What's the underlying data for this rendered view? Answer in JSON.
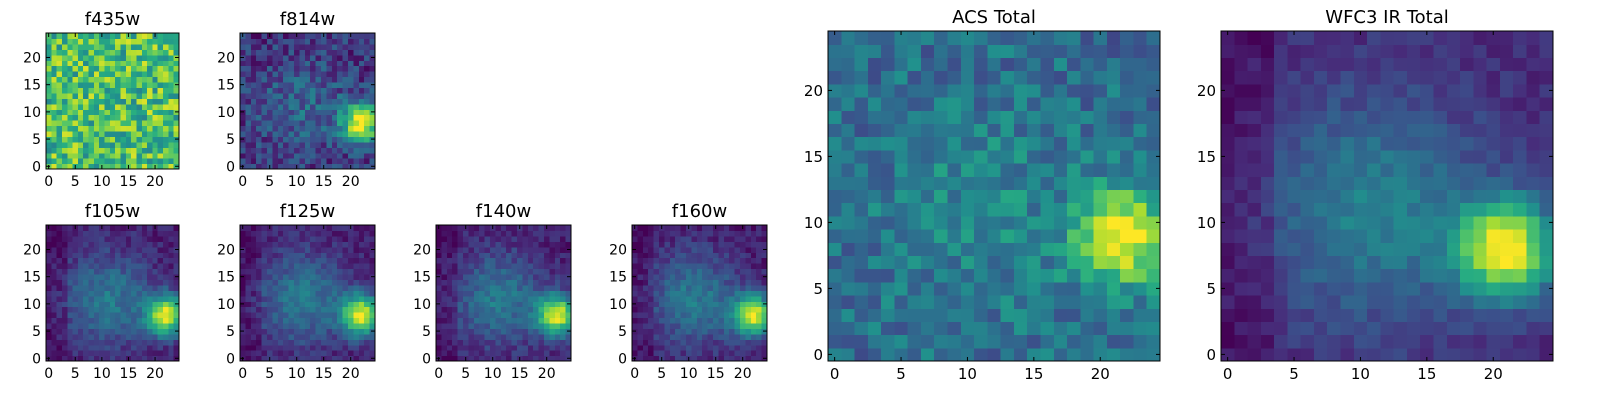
{
  "figure": {
    "background": "#ffffff",
    "colormap": "viridis"
  },
  "chart_data": [
    {
      "type": "heatmap",
      "title": "f435w",
      "xlabel": "",
      "ylabel": "",
      "xlim": [
        0,
        25
      ],
      "ylim": [
        0,
        25
      ],
      "grid": false,
      "x_ticks": [
        "0",
        "5",
        "10",
        "15",
        "20"
      ],
      "y_ticks": [
        "0",
        "5",
        "10",
        "15",
        "20"
      ],
      "description": "noisy uniform image, no source"
    },
    {
      "type": "heatmap",
      "title": "f814w",
      "xlabel": "",
      "ylabel": "",
      "xlim": [
        0,
        25
      ],
      "ylim": [
        0,
        25
      ],
      "grid": false,
      "x_ticks": [
        "0",
        "5",
        "10",
        "15",
        "20"
      ],
      "y_ticks": [
        "0",
        "5",
        "10",
        "15",
        "20"
      ],
      "peak": {
        "x": 22,
        "y": 8
      }
    },
    {
      "type": "heatmap",
      "title": "f105w",
      "xlabel": "",
      "ylabel": "",
      "xlim": [
        0,
        25
      ],
      "ylim": [
        0,
        25
      ],
      "grid": false,
      "x_ticks": [
        "0",
        "5",
        "10",
        "15",
        "20"
      ],
      "y_ticks": [
        "0",
        "5",
        "10",
        "15",
        "20"
      ],
      "peak": {
        "x": 22,
        "y": 8
      }
    },
    {
      "type": "heatmap",
      "title": "f125w",
      "xlabel": "",
      "ylabel": "",
      "xlim": [
        0,
        25
      ],
      "ylim": [
        0,
        25
      ],
      "grid": false,
      "x_ticks": [
        "0",
        "5",
        "10",
        "15",
        "20"
      ],
      "y_ticks": [
        "0",
        "5",
        "10",
        "15",
        "20"
      ],
      "peak": {
        "x": 22,
        "y": 8
      }
    },
    {
      "type": "heatmap",
      "title": "f140w",
      "xlabel": "",
      "ylabel": "",
      "xlim": [
        0,
        25
      ],
      "ylim": [
        0,
        25
      ],
      "grid": false,
      "x_ticks": [
        "0",
        "5",
        "10",
        "15",
        "20"
      ],
      "y_ticks": [
        "0",
        "5",
        "10",
        "15",
        "20"
      ],
      "peak": {
        "x": 22,
        "y": 8
      }
    },
    {
      "type": "heatmap",
      "title": "f160w",
      "xlabel": "",
      "ylabel": "",
      "xlim": [
        0,
        25
      ],
      "ylim": [
        0,
        25
      ],
      "grid": false,
      "x_ticks": [
        "0",
        "5",
        "10",
        "15",
        "20"
      ],
      "y_ticks": [
        "0",
        "5",
        "10",
        "15",
        "20"
      ],
      "peak": {
        "x": 22,
        "y": 8
      }
    },
    {
      "type": "heatmap",
      "title": "ACS Total",
      "xlabel": "",
      "ylabel": "",
      "xlim": [
        0,
        25
      ],
      "ylim": [
        0,
        25
      ],
      "grid": false,
      "x_ticks": [
        "0",
        "5",
        "10",
        "15",
        "20"
      ],
      "y_ticks": [
        "0",
        "5",
        "10",
        "15",
        "20"
      ],
      "peak": {
        "x": 22,
        "y": 9
      }
    },
    {
      "type": "heatmap",
      "title": "WFC3 IR Total",
      "xlabel": "",
      "ylabel": "",
      "xlim": [
        0,
        25
      ],
      "ylim": [
        0,
        25
      ],
      "grid": false,
      "x_ticks": [
        "0",
        "5",
        "10",
        "15",
        "20"
      ],
      "y_ticks": [
        "0",
        "5",
        "10",
        "15",
        "20"
      ],
      "peak": {
        "x": 21,
        "y": 8
      }
    }
  ]
}
